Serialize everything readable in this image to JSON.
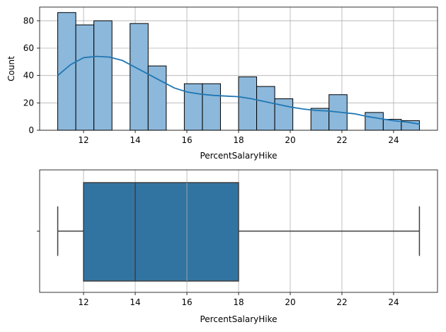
{
  "chart_data": [
    {
      "type": "bar",
      "subtype": "histogram-with-kde",
      "xlabel": "PercentSalaryHike",
      "ylabel": "Count",
      "xlim": [
        10.3,
        25.7
      ],
      "ylim": [
        0,
        90
      ],
      "xticks": [
        12,
        14,
        16,
        18,
        20,
        22,
        24
      ],
      "yticks": [
        0,
        20,
        40,
        60,
        80
      ],
      "grid": true,
      "bar_color": "#8cb8db",
      "edge_color": "#000000",
      "kde_color": "#1f77b4",
      "bins": [
        {
          "x0": 11.0,
          "x1": 11.7,
          "count": 86
        },
        {
          "x0": 11.7,
          "x1": 12.4,
          "count": 77
        },
        {
          "x0": 12.4,
          "x1": 13.1,
          "count": 80
        },
        {
          "x0": 13.1,
          "x1": 13.8,
          "count": 0
        },
        {
          "x0": 13.8,
          "x1": 14.5,
          "count": 78
        },
        {
          "x0": 14.5,
          "x1": 15.2,
          "count": 47
        },
        {
          "x0": 15.2,
          "x1": 15.9,
          "count": 0
        },
        {
          "x0": 15.9,
          "x1": 16.6,
          "count": 34
        },
        {
          "x0": 16.6,
          "x1": 17.3,
          "count": 34
        },
        {
          "x0": 17.3,
          "x1": 18.0,
          "count": 0
        },
        {
          "x0": 18.0,
          "x1": 18.7,
          "count": 39
        },
        {
          "x0": 18.7,
          "x1": 19.4,
          "count": 32
        },
        {
          "x0": 19.4,
          "x1": 20.1,
          "count": 23
        },
        {
          "x0": 20.1,
          "x1": 20.8,
          "count": 0
        },
        {
          "x0": 20.8,
          "x1": 21.5,
          "count": 16
        },
        {
          "x0": 21.5,
          "x1": 22.2,
          "count": 26
        },
        {
          "x0": 22.2,
          "x1": 22.9,
          "count": 0
        },
        {
          "x0": 22.9,
          "x1": 23.6,
          "count": 13
        },
        {
          "x0": 23.6,
          "x1": 24.3,
          "count": 8
        },
        {
          "x0": 24.3,
          "x1": 25.0,
          "count": 7
        }
      ],
      "kde": {
        "x": [
          11.0,
          11.5,
          12.0,
          12.5,
          13.0,
          13.5,
          14.0,
          14.5,
          15.0,
          15.5,
          16.0,
          16.5,
          17.0,
          17.5,
          18.0,
          18.5,
          19.0,
          19.5,
          20.0,
          20.5,
          21.0,
          21.5,
          22.0,
          22.5,
          23.0,
          23.5,
          24.0,
          24.5,
          25.0
        ],
        "y": [
          40,
          48,
          53,
          54,
          53.5,
          51,
          46,
          41,
          36,
          31,
          28,
          26.5,
          25.5,
          25,
          24.5,
          23,
          21,
          19,
          17,
          15.5,
          14.5,
          14,
          13,
          12,
          10,
          8.5,
          7,
          6,
          4.5
        ]
      }
    },
    {
      "type": "boxplot",
      "xlabel": "PercentSalaryHike",
      "xlim": [
        10.3,
        25.7
      ],
      "xticks": [
        12,
        14,
        16,
        18,
        20,
        22,
        24
      ],
      "grid": true,
      "box_color": "#3274a1",
      "whisker_low": 11,
      "q1": 12,
      "median": 14,
      "q3": 18,
      "whisker_high": 25
    }
  ]
}
